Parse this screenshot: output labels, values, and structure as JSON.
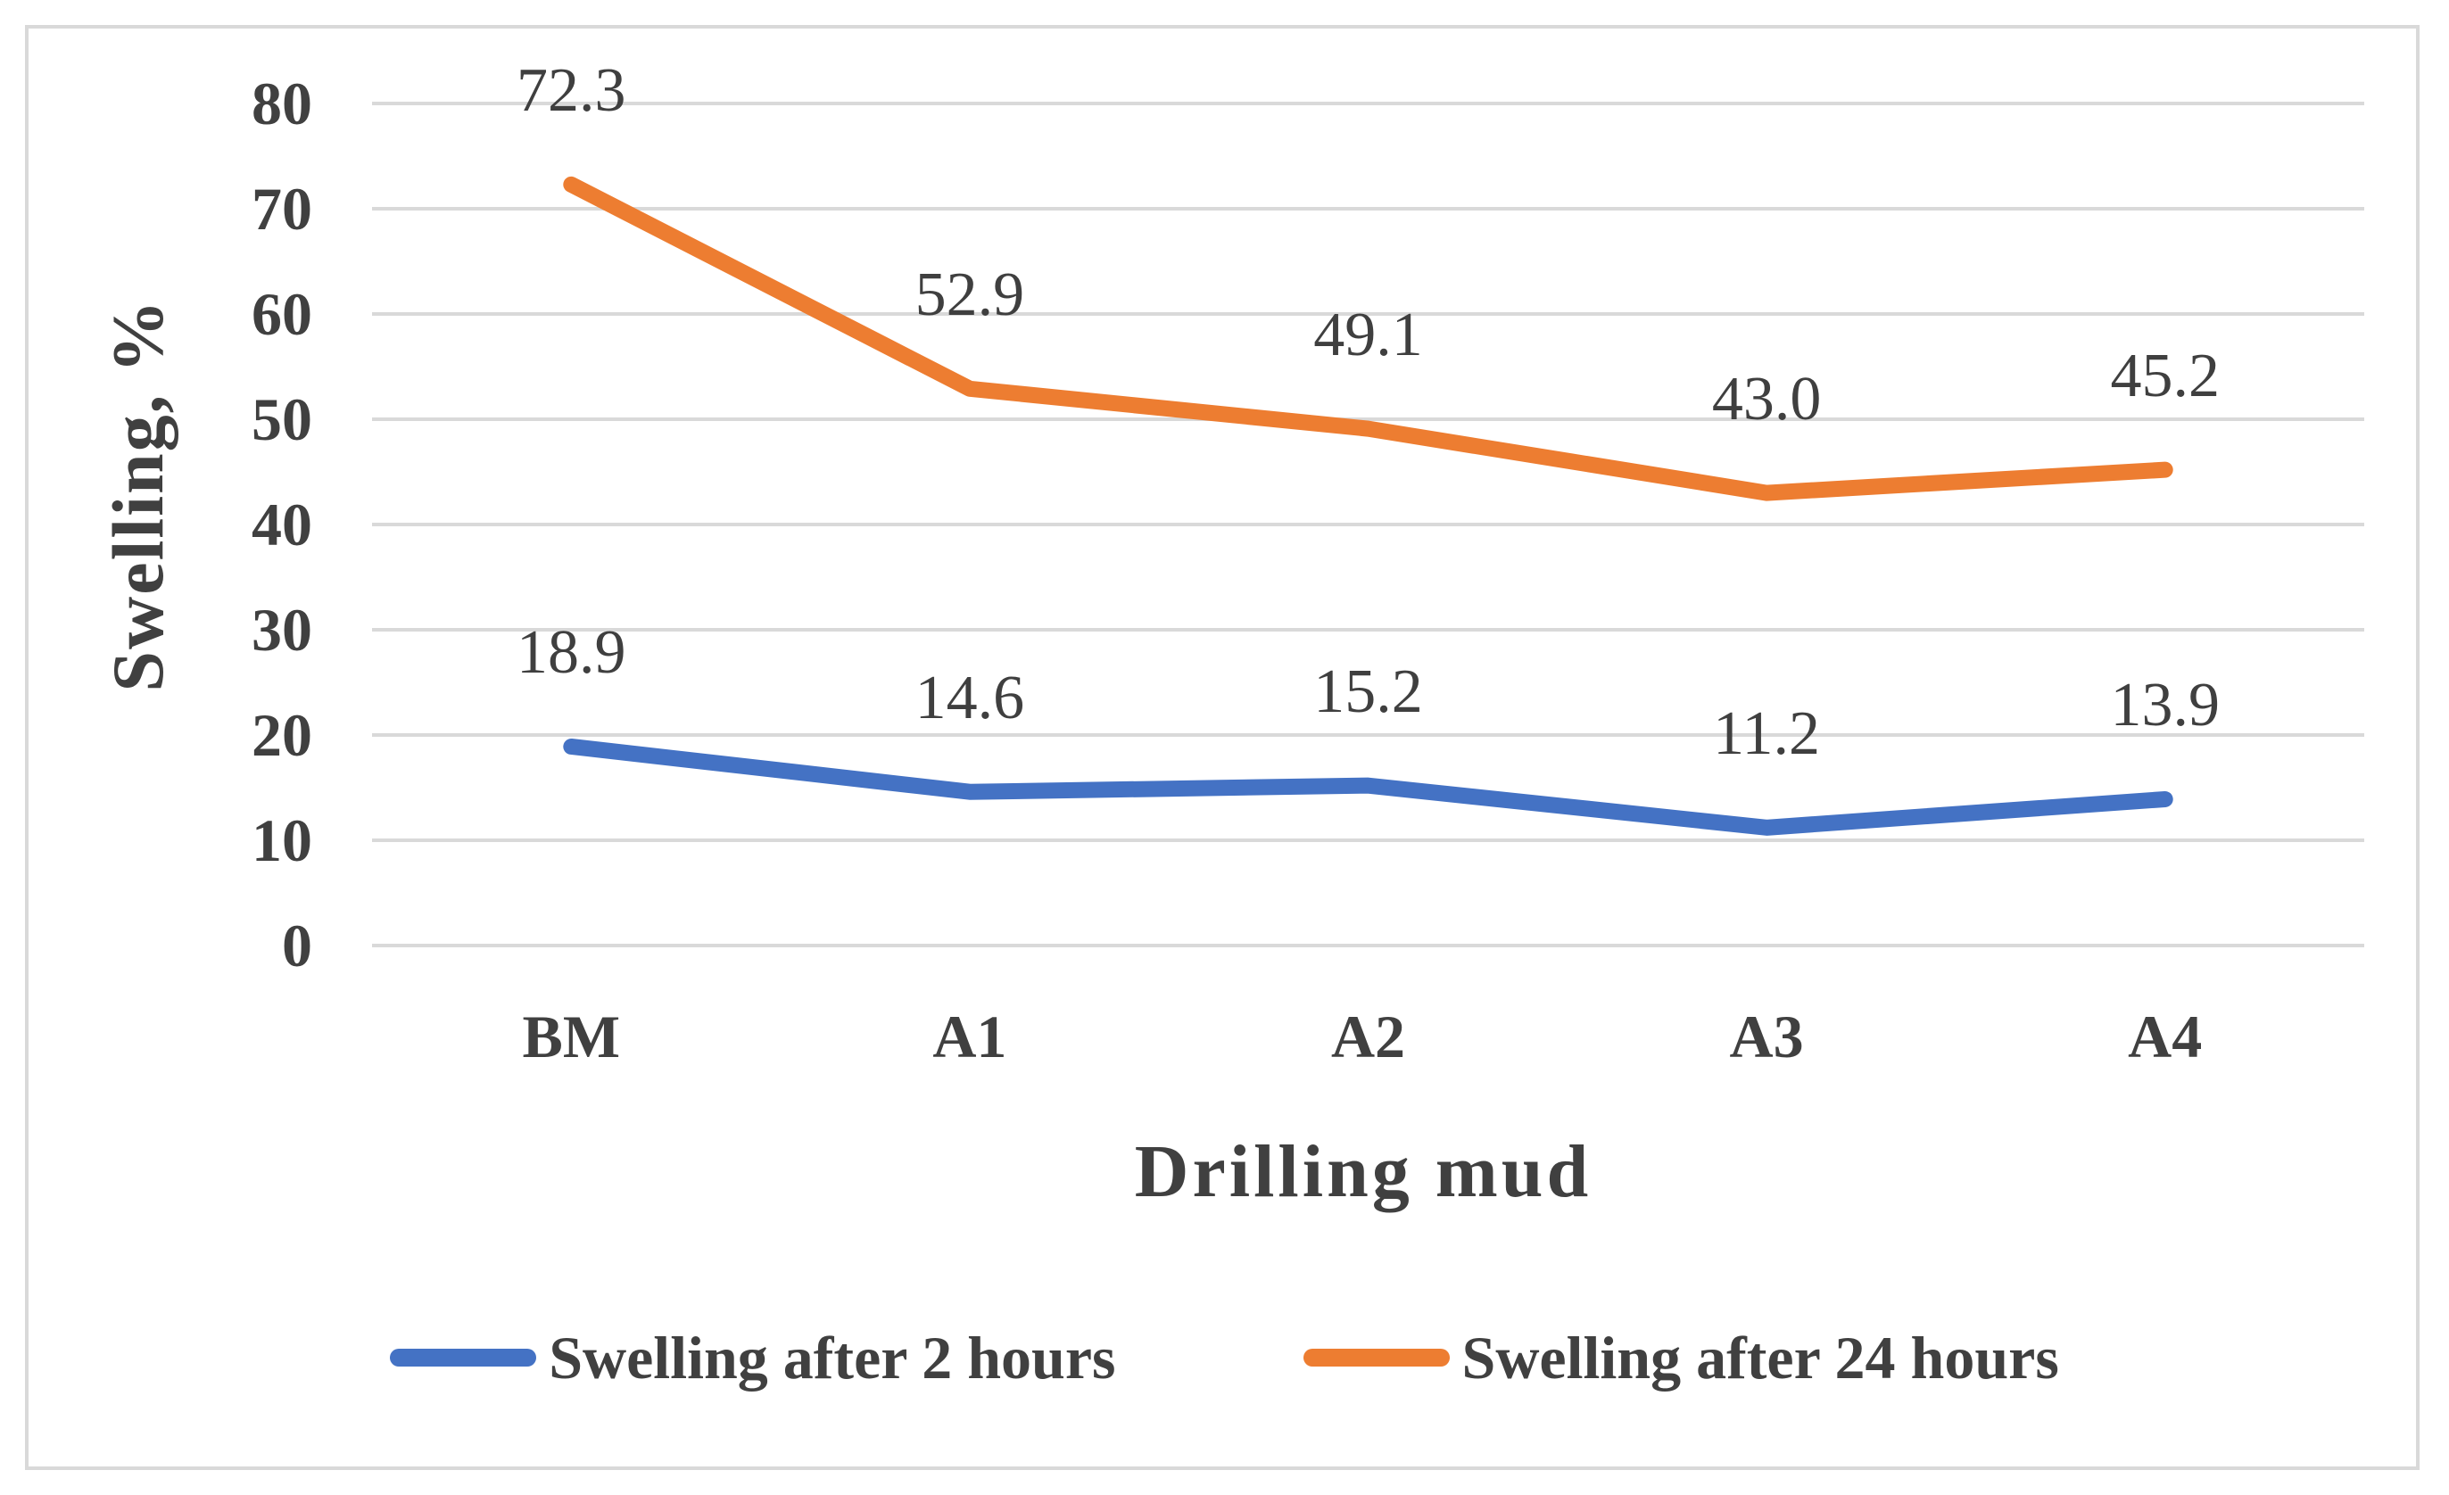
{
  "chart_data": {
    "type": "line",
    "title": "",
    "categories": [
      "BM",
      "A1",
      "A2",
      "A3",
      "A4"
    ],
    "series": [
      {
        "name": "Swelling after 2 hours",
        "color": "#4472C4",
        "values": [
          18.9,
          14.6,
          15.2,
          11.2,
          13.9
        ],
        "labels": [
          "18.9",
          "14.6",
          "15.2",
          "11.2",
          "13.9"
        ]
      },
      {
        "name": "Swelling after 24 hours",
        "color": "#ED7D31",
        "values": [
          72.3,
          52.9,
          49.1,
          43.0,
          45.2
        ],
        "labels": [
          "72.3",
          "52.9",
          "49.1",
          "43.0",
          "45.2"
        ]
      }
    ],
    "xlabel": "Drilling mud",
    "ylabel": "Swelling, %",
    "ylim": [
      0,
      80
    ],
    "yticks": [
      0,
      10,
      20,
      30,
      40,
      50,
      60,
      70,
      80
    ],
    "grid": true,
    "legend_position": "bottom"
  },
  "styles": {
    "grid_color": "#D9D9D9",
    "frame_color": "#D9D9D9",
    "text_color": "#404040"
  }
}
